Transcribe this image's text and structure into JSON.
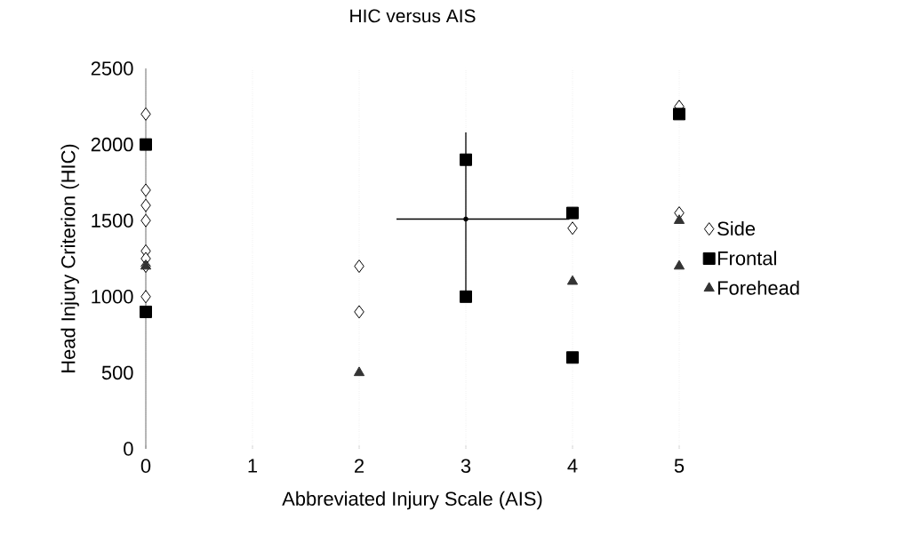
{
  "chart_data": {
    "type": "scatter",
    "title": "HIC versus AIS",
    "xlabel": "Abbreviated Injury Scale (AIS)",
    "ylabel": "Head Injury Criterion (HIC)",
    "xlim": [
      0,
      5
    ],
    "xticks": [
      0,
      1,
      2,
      3,
      4,
      5
    ],
    "ylim": [
      0,
      2500
    ],
    "yticks": [
      0,
      500,
      1000,
      1500,
      2000,
      2500
    ],
    "grid": "x",
    "legend": "right",
    "series": [
      {
        "name": "Side",
        "color": "#000000",
        "marker": "diamond",
        "x": [
          0,
          0,
          0,
          0,
          0,
          0,
          0,
          0,
          2,
          2,
          4,
          5,
          5
        ],
        "values": [
          2200,
          1700,
          1600,
          1500,
          1300,
          1250,
          1200,
          1000,
          1200,
          900,
          1450,
          2250,
          1550
        ]
      },
      {
        "name": "Frontal",
        "color": "#000000",
        "marker": "square",
        "x": [
          0,
          0,
          3,
          3,
          4,
          4,
          5
        ],
        "values": [
          2000,
          900,
          1900,
          1000,
          1550,
          600,
          2200
        ]
      },
      {
        "name": "Forehead",
        "color": "#333333",
        "marker": "triangle",
        "x": [
          0,
          2,
          4,
          5,
          5
        ],
        "values": [
          1200,
          500,
          1100,
          1500,
          1200
        ]
      },
      {
        "color": "#000000",
        "marker": "none",
        "x": [
          3
        ],
        "values": [
          1510
        ],
        "errors": [
          [
            980,
            2080
          ]
        ],
        "xerrors": [
          [
            2.35,
            3.97
          ]
        ]
      }
    ]
  }
}
